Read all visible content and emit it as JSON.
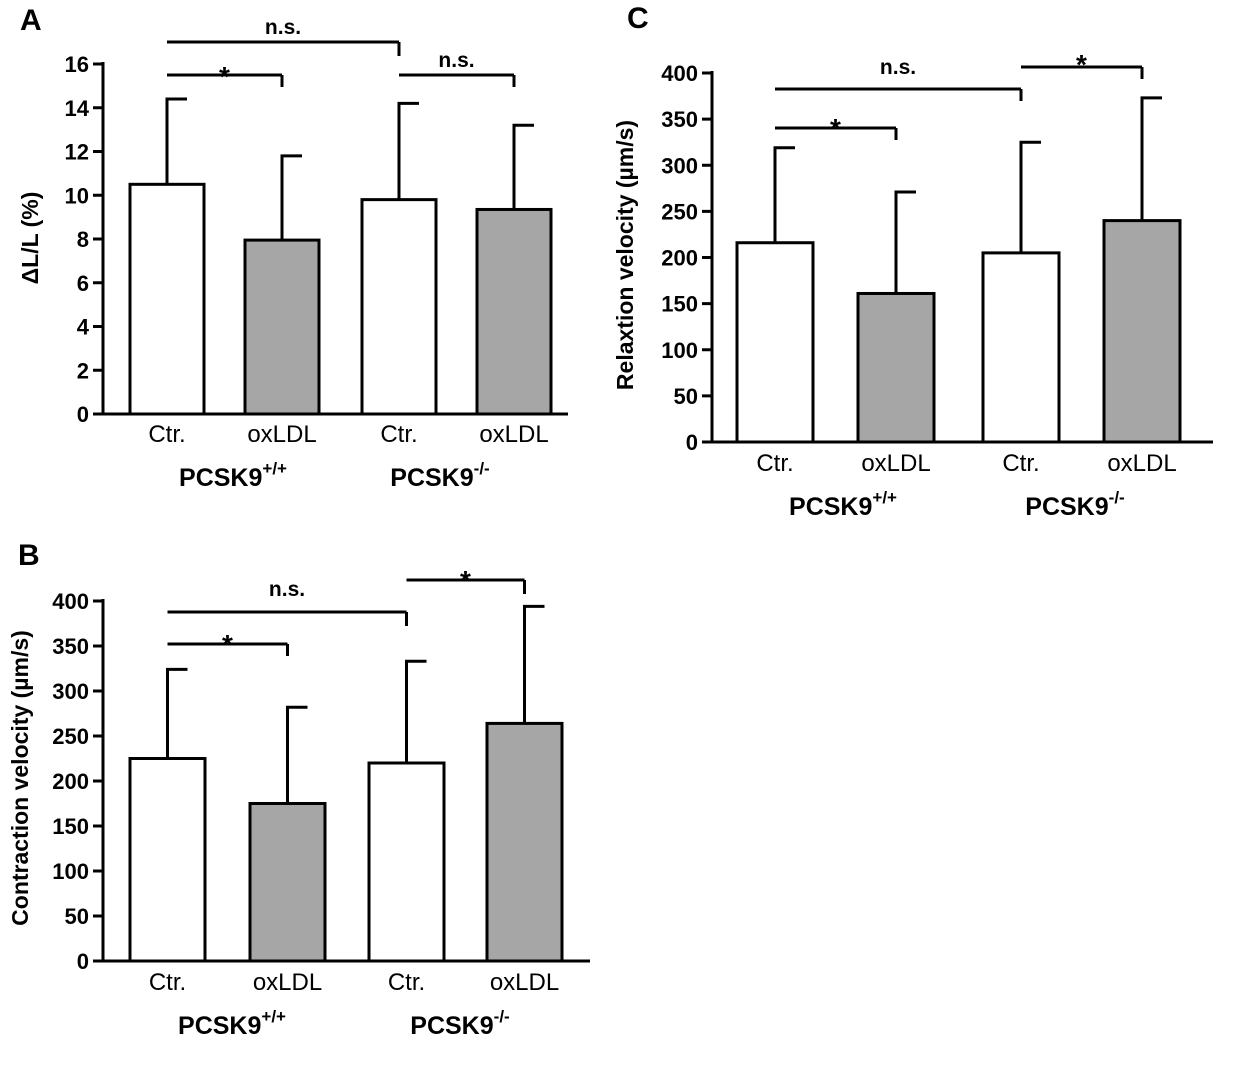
{
  "chart_data": [
    {
      "type": "bar",
      "panel": "A",
      "ylabel": "ΔL/L (%)",
      "ylim": [
        0,
        16
      ],
      "yticks": [
        "0",
        "2",
        "4",
        "6",
        "8",
        "10",
        "12",
        "14",
        "16"
      ],
      "categories": [
        "Ctr.",
        "oxLDL",
        "Ctr.",
        "oxLDL"
      ],
      "groups": [
        {
          "base": "PCSK9",
          "sup": "+/+"
        },
        {
          "base": "PCSK9",
          "sup": "-/-"
        }
      ],
      "series": [
        {
          "values": [
            10.5,
            7.95,
            9.8,
            9.35
          ],
          "errors": [
            3.9,
            3.85,
            4.4,
            3.85
          ],
          "fills": [
            "#ffffff",
            "#a6a6a6",
            "#ffffff",
            "#a6a6a6"
          ]
        }
      ],
      "significance": [
        {
          "from": 0,
          "to": 1,
          "label": "*"
        },
        {
          "from": 0,
          "to": 2,
          "label": "n.s."
        },
        {
          "from": 2,
          "to": 3,
          "label": "n.s."
        }
      ]
    },
    {
      "type": "bar",
      "panel": "B",
      "ylabel": "Contraction velocity (µm/s)",
      "ylim": [
        0,
        400
      ],
      "yticks": [
        "0",
        "50",
        "100",
        "150",
        "200",
        "250",
        "300",
        "350",
        "400"
      ],
      "categories": [
        "Ctr.",
        "oxLDL",
        "Ctr.",
        "oxLDL"
      ],
      "groups": [
        {
          "base": "PCSK9",
          "sup": "+/+"
        },
        {
          "base": "PCSK9",
          "sup": "-/-"
        }
      ],
      "series": [
        {
          "values": [
            225,
            175,
            220,
            264
          ],
          "errors": [
            99,
            107,
            113,
            130
          ],
          "fills": [
            "#ffffff",
            "#a6a6a6",
            "#ffffff",
            "#a6a6a6"
          ]
        }
      ],
      "significance": [
        {
          "from": 0,
          "to": 1,
          "label": "*"
        },
        {
          "from": 0,
          "to": 2,
          "label": "n.s."
        },
        {
          "from": 2,
          "to": 3,
          "label": "*"
        }
      ]
    },
    {
      "type": "bar",
      "panel": "C",
      "ylabel": "Relaxtion velocity (µm/s)",
      "ylim": [
        0,
        400
      ],
      "yticks": [
        "0",
        "50",
        "100",
        "150",
        "200",
        "250",
        "300",
        "350",
        "400"
      ],
      "categories": [
        "Ctr.",
        "oxLDL",
        "Ctr.",
        "oxLDL"
      ],
      "groups": [
        {
          "base": "PCSK9",
          "sup": "+/+"
        },
        {
          "base": "PCSK9",
          "sup": "-/-"
        }
      ],
      "series": [
        {
          "values": [
            216,
            161,
            205,
            240
          ],
          "errors": [
            103,
            110,
            120,
            133
          ],
          "fills": [
            "#ffffff",
            "#a6a6a6",
            "#ffffff",
            "#a6a6a6"
          ]
        }
      ],
      "significance": [
        {
          "from": 0,
          "to": 1,
          "label": "*"
        },
        {
          "from": 0,
          "to": 2,
          "label": "n.s."
        },
        {
          "from": 2,
          "to": 3,
          "label": "*"
        }
      ]
    }
  ]
}
